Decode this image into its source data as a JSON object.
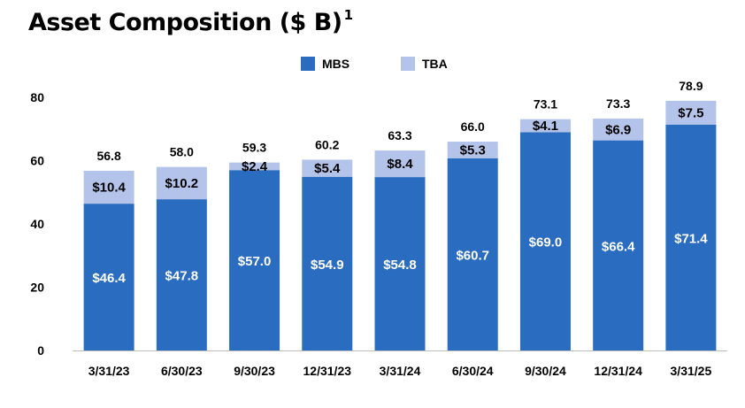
{
  "title": "Asset Composition ($ B)",
  "title_superscript": "1",
  "legend": [
    {
      "label": "MBS",
      "color": "#2a6cbf"
    },
    {
      "label": "TBA",
      "color": "#b4c3ea"
    }
  ],
  "chart_data": {
    "type": "bar",
    "stacked": true,
    "categories": [
      "3/31/23",
      "6/30/23",
      "9/30/23",
      "12/31/23",
      "3/31/24",
      "6/30/24",
      "9/30/24",
      "12/31/24",
      "3/31/25"
    ],
    "series": [
      {
        "name": "MBS",
        "values": [
          46.4,
          47.8,
          57.0,
          54.9,
          54.8,
          60.7,
          69.0,
          66.4,
          71.4
        ],
        "labels": [
          "$46.4",
          "$47.8",
          "$57.0",
          "$54.9",
          "$54.8",
          "$60.7",
          "$69.0",
          "$66.4",
          "$71.4"
        ],
        "color": "#2a6cbf"
      },
      {
        "name": "TBA",
        "values": [
          10.4,
          10.2,
          2.4,
          5.4,
          8.4,
          5.3,
          4.1,
          6.9,
          7.5
        ],
        "labels": [
          "$10.4",
          "$10.2",
          "$2.4",
          "$5.4",
          "$8.4",
          "$5.3",
          "$4.1",
          "$6.9",
          "$7.5"
        ],
        "color": "#b4c3ea"
      }
    ],
    "totals": [
      "56.8",
      "58.0",
      "59.3",
      "60.2",
      "63.3",
      "66.0",
      "73.1",
      "73.3",
      "78.9"
    ],
    "yticks": [
      0,
      20,
      40,
      60,
      80
    ],
    "ylim": [
      0,
      80
    ],
    "grid": false,
    "legend_position": "top-center"
  }
}
